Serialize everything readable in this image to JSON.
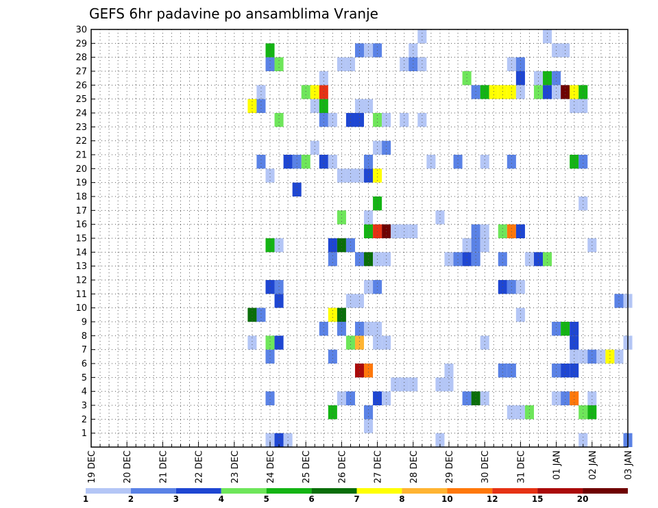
{
  "chart_data": {
    "type": "heatmap",
    "title": "GEFS 6hr padavine po ansamblima Vranje",
    "x_tick_labels": [
      "19 DEC",
      "20 DEC",
      "21 DEC",
      "22 DEC",
      "23 DEC",
      "24 DEC",
      "25 DEC",
      "26 DEC",
      "27 DEC",
      "28 DEC",
      "29 DEC",
      "30 DEC",
      "31 DEC",
      "01 JAN",
      "02 JAN",
      "03 JAN"
    ],
    "y_tick_labels": [
      "1",
      "2",
      "3",
      "4",
      "5",
      "6",
      "7",
      "8",
      "9",
      "10",
      "11",
      "12",
      "13",
      "14",
      "15",
      "16",
      "17",
      "18",
      "19",
      "20",
      "21",
      "22",
      "23",
      "24",
      "25",
      "26",
      "27",
      "28",
      "29",
      "30"
    ],
    "x_range_steps": [
      0,
      60
    ],
    "y_range_members": [
      0,
      30
    ],
    "legend_labels": [
      "1",
      "2",
      "3",
      "4",
      "5",
      "6",
      "7",
      "8",
      "10",
      "12",
      "15",
      "20"
    ],
    "level_colors": [
      "#b4c6f6",
      "#5a82e6",
      "#1e46d2",
      "#6ee65a",
      "#14b414",
      "#0a6e0a",
      "#ffff00",
      "#ffb432",
      "#ff780a",
      "#e63214",
      "#aa0a0a",
      "#6e0000"
    ],
    "cells": [
      [
        20,
        0,
        0
      ],
      [
        21,
        0,
        2
      ],
      [
        22,
        0,
        0
      ],
      [
        39,
        0,
        0
      ],
      [
        55,
        0,
        0
      ],
      [
        60,
        0,
        1
      ],
      [
        31,
        1,
        0
      ],
      [
        31,
        2,
        1
      ],
      [
        27,
        2,
        4
      ],
      [
        55,
        2,
        3
      ],
      [
        56,
        2,
        4
      ],
      [
        47,
        2,
        0
      ],
      [
        48,
        2,
        0
      ],
      [
        49,
        2,
        3
      ],
      [
        20,
        3,
        1
      ],
      [
        28,
        3,
        0
      ],
      [
        29,
        3,
        1
      ],
      [
        32,
        3,
        2
      ],
      [
        33,
        3,
        0
      ],
      [
        42,
        3,
        1
      ],
      [
        43,
        3,
        5
      ],
      [
        44,
        3,
        0
      ],
      [
        52,
        3,
        0
      ],
      [
        53,
        3,
        1
      ],
      [
        54,
        3,
        8
      ],
      [
        56,
        3,
        0
      ],
      [
        34,
        4,
        0
      ],
      [
        35,
        4,
        0
      ],
      [
        36,
        4,
        0
      ],
      [
        39,
        4,
        0
      ],
      [
        40,
        4,
        0
      ],
      [
        30,
        5,
        10
      ],
      [
        31,
        5,
        8
      ],
      [
        40,
        5,
        0
      ],
      [
        46,
        5,
        1
      ],
      [
        47,
        5,
        1
      ],
      [
        52,
        5,
        1
      ],
      [
        53,
        5,
        2
      ],
      [
        54,
        5,
        2
      ],
      [
        20,
        6,
        1
      ],
      [
        27,
        6,
        1
      ],
      [
        54,
        6,
        0
      ],
      [
        55,
        6,
        0
      ],
      [
        56,
        6,
        1
      ],
      [
        57,
        6,
        0
      ],
      [
        58,
        6,
        6
      ],
      [
        59,
        6,
        0
      ],
      [
        18,
        7,
        0
      ],
      [
        20,
        7,
        3
      ],
      [
        21,
        7,
        2
      ],
      [
        29,
        7,
        3
      ],
      [
        30,
        7,
        7
      ],
      [
        32,
        7,
        0
      ],
      [
        33,
        7,
        0
      ],
      [
        44,
        7,
        0
      ],
      [
        54,
        7,
        2
      ],
      [
        60,
        7,
        0
      ],
      [
        26,
        8,
        1
      ],
      [
        28,
        8,
        1
      ],
      [
        30,
        8,
        1
      ],
      [
        31,
        8,
        0
      ],
      [
        32,
        8,
        0
      ],
      [
        52,
        8,
        1
      ],
      [
        53,
        8,
        4
      ],
      [
        54,
        8,
        2
      ],
      [
        18,
        9,
        5
      ],
      [
        19,
        9,
        1
      ],
      [
        27,
        9,
        6
      ],
      [
        28,
        9,
        5
      ],
      [
        48,
        9,
        0
      ],
      [
        21,
        10,
        2
      ],
      [
        29,
        10,
        0
      ],
      [
        30,
        10,
        0
      ],
      [
        59,
        10,
        1
      ],
      [
        60,
        10,
        0
      ],
      [
        20,
        11,
        2
      ],
      [
        21,
        11,
        1
      ],
      [
        31,
        11,
        0
      ],
      [
        32,
        11,
        1
      ],
      [
        46,
        11,
        2
      ],
      [
        47,
        11,
        1
      ],
      [
        48,
        11,
        0
      ],
      [
        27,
        13,
        1
      ],
      [
        30,
        13,
        1
      ],
      [
        31,
        13,
        5
      ],
      [
        32,
        13,
        0
      ],
      [
        33,
        13,
        0
      ],
      [
        40,
        13,
        0
      ],
      [
        41,
        13,
        1
      ],
      [
        42,
        13,
        2
      ],
      [
        43,
        13,
        1
      ],
      [
        46,
        13,
        1
      ],
      [
        49,
        13,
        0
      ],
      [
        50,
        13,
        2
      ],
      [
        51,
        13,
        3
      ],
      [
        20,
        14,
        4
      ],
      [
        21,
        14,
        0
      ],
      [
        27,
        14,
        2
      ],
      [
        28,
        14,
        5
      ],
      [
        29,
        14,
        1
      ],
      [
        42,
        14,
        0
      ],
      [
        43,
        14,
        1
      ],
      [
        44,
        14,
        0
      ],
      [
        56,
        14,
        0
      ],
      [
        31,
        15,
        4
      ],
      [
        32,
        15,
        9
      ],
      [
        33,
        15,
        11
      ],
      [
        34,
        15,
        0
      ],
      [
        35,
        15,
        0
      ],
      [
        36,
        15,
        0
      ],
      [
        43,
        15,
        1
      ],
      [
        44,
        15,
        0
      ],
      [
        46,
        15,
        3
      ],
      [
        47,
        15,
        8
      ],
      [
        48,
        15,
        2
      ],
      [
        28,
        16,
        3
      ],
      [
        31,
        16,
        0
      ],
      [
        39,
        16,
        0
      ],
      [
        32,
        17,
        4
      ],
      [
        55,
        17,
        0
      ],
      [
        23,
        18,
        2
      ],
      [
        20,
        19,
        0
      ],
      [
        28,
        19,
        0
      ],
      [
        29,
        19,
        0
      ],
      [
        30,
        19,
        0
      ],
      [
        31,
        19,
        2
      ],
      [
        32,
        19,
        6
      ],
      [
        19,
        20,
        1
      ],
      [
        22,
        20,
        2
      ],
      [
        23,
        20,
        1
      ],
      [
        24,
        20,
        3
      ],
      [
        26,
        20,
        2
      ],
      [
        27,
        20,
        0
      ],
      [
        31,
        20,
        1
      ],
      [
        38,
        20,
        0
      ],
      [
        41,
        20,
        1
      ],
      [
        44,
        20,
        0
      ],
      [
        47,
        20,
        1
      ],
      [
        54,
        20,
        4
      ],
      [
        55,
        20,
        1
      ],
      [
        25,
        21,
        0
      ],
      [
        32,
        21,
        0
      ],
      [
        33,
        21,
        1
      ],
      [
        21,
        23,
        3
      ],
      [
        26,
        23,
        1
      ],
      [
        27,
        23,
        0
      ],
      [
        29,
        23,
        2
      ],
      [
        30,
        23,
        2
      ],
      [
        32,
        23,
        3
      ],
      [
        33,
        23,
        0
      ],
      [
        35,
        23,
        0
      ],
      [
        37,
        23,
        0
      ],
      [
        18,
        24,
        6
      ],
      [
        19,
        24,
        1
      ],
      [
        25,
        24,
        0
      ],
      [
        26,
        24,
        4
      ],
      [
        30,
        24,
        0
      ],
      [
        31,
        24,
        0
      ],
      [
        54,
        24,
        0
      ],
      [
        55,
        24,
        0
      ],
      [
        19,
        25,
        0
      ],
      [
        24,
        25,
        3
      ],
      [
        25,
        25,
        6
      ],
      [
        26,
        25,
        9
      ],
      [
        43,
        25,
        1
      ],
      [
        44,
        25,
        4
      ],
      [
        45,
        25,
        6
      ],
      [
        46,
        25,
        6
      ],
      [
        47,
        25,
        6
      ],
      [
        48,
        25,
        0
      ],
      [
        50,
        25,
        3
      ],
      [
        51,
        25,
        2
      ],
      [
        52,
        25,
        0
      ],
      [
        53,
        25,
        11
      ],
      [
        54,
        25,
        6
      ],
      [
        55,
        25,
        4
      ],
      [
        26,
        26,
        0
      ],
      [
        42,
        26,
        3
      ],
      [
        48,
        26,
        2
      ],
      [
        50,
        26,
        0
      ],
      [
        51,
        26,
        4
      ],
      [
        52,
        26,
        1
      ],
      [
        20,
        27,
        1
      ],
      [
        21,
        27,
        3
      ],
      [
        28,
        27,
        0
      ],
      [
        29,
        27,
        0
      ],
      [
        35,
        27,
        0
      ],
      [
        36,
        27,
        1
      ],
      [
        37,
        27,
        0
      ],
      [
        47,
        27,
        0
      ],
      [
        48,
        27,
        1
      ],
      [
        20,
        28,
        4
      ],
      [
        30,
        28,
        1
      ],
      [
        31,
        28,
        0
      ],
      [
        32,
        28,
        1
      ],
      [
        36,
        28,
        0
      ],
      [
        52,
        28,
        0
      ],
      [
        53,
        28,
        0
      ],
      [
        37,
        29,
        0
      ],
      [
        51,
        29,
        0
      ]
    ]
  }
}
